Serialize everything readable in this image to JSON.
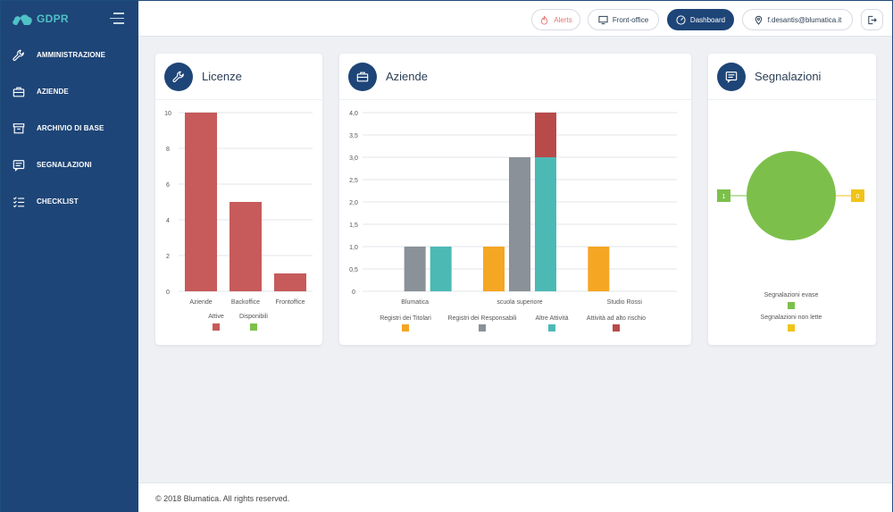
{
  "app": {
    "brand": "GDPR"
  },
  "colors": {
    "sidebar": "#1e4577",
    "accent": "#4fc1c7",
    "red": "#c75a5a",
    "green": "#7cc04b",
    "gray": "#8a9198",
    "teal": "#4cb9b5",
    "orange": "#f5a623",
    "darkred": "#b94a4a",
    "yellow": "#f0c419"
  },
  "sidebar": {
    "items": [
      {
        "label": "AMMINISTRAZIONE",
        "icon": "wrench-icon"
      },
      {
        "label": "AZIENDE",
        "icon": "briefcase-icon"
      },
      {
        "label": "ARCHIVIO DI BASE",
        "icon": "archive-icon"
      },
      {
        "label": "SEGNALAZIONI",
        "icon": "message-icon"
      },
      {
        "label": "CHECKLIST",
        "icon": "checklist-icon"
      }
    ]
  },
  "topbar": {
    "alerts": "Alerts",
    "front_office": "Front-office",
    "dashboard": "Dashboard",
    "user": "f.desantis@blumatica.it"
  },
  "cards": {
    "licenze": {
      "title": "Licenze"
    },
    "aziende": {
      "title": "Aziende"
    },
    "segnalazioni": {
      "title": "Segnalazioni"
    }
  },
  "chart_data": [
    {
      "type": "bar",
      "categories": [
        "Aziende",
        "Backoffice",
        "Frontoffice"
      ],
      "series": [
        {
          "name": "Attive",
          "values": [
            10,
            5,
            1
          ],
          "color": "#c75a5a"
        },
        {
          "name": "Disponibili",
          "values": [
            0,
            0,
            0
          ],
          "color": "#7cc04b"
        }
      ],
      "yticks": [
        "0",
        "2",
        "4",
        "6",
        "8",
        "10"
      ],
      "ylim": [
        0,
        10
      ]
    },
    {
      "type": "bar",
      "stacked_series": [
        "Altre Attività",
        "Attività ad alto rischio"
      ],
      "categories": [
        "Blumatica",
        "scuola superiore",
        "Studio Rossi"
      ],
      "series": [
        {
          "name": "Registri dei Titolari",
          "values": [
            0,
            1,
            1
          ],
          "color": "#f5a623"
        },
        {
          "name": "Registri dei Responsabili",
          "values": [
            1,
            3,
            0
          ],
          "color": "#8a9198"
        },
        {
          "name": "Altre Attività",
          "values": [
            1,
            3,
            0
          ],
          "color": "#4cb9b5"
        },
        {
          "name": "Attività ad alto rischio",
          "values": [
            0,
            1,
            0
          ],
          "color": "#b94a4a"
        }
      ],
      "yticks": [
        "0",
        "0,5",
        "1,0",
        "1,5",
        "2,0",
        "2,5",
        "3,0",
        "3,5",
        "4,0"
      ],
      "ylim": [
        0,
        4
      ]
    },
    {
      "type": "pie",
      "slices": [
        {
          "name": "Segnalazioni evase",
          "value": 1,
          "label": "1",
          "color": "#7cc04b"
        },
        {
          "name": "Segnalazioni non lette",
          "value": 0,
          "label": "0",
          "color": "#f0c419"
        }
      ]
    }
  ],
  "footer": {
    "text": "© 2018 Blumatica. All rights reserved."
  }
}
